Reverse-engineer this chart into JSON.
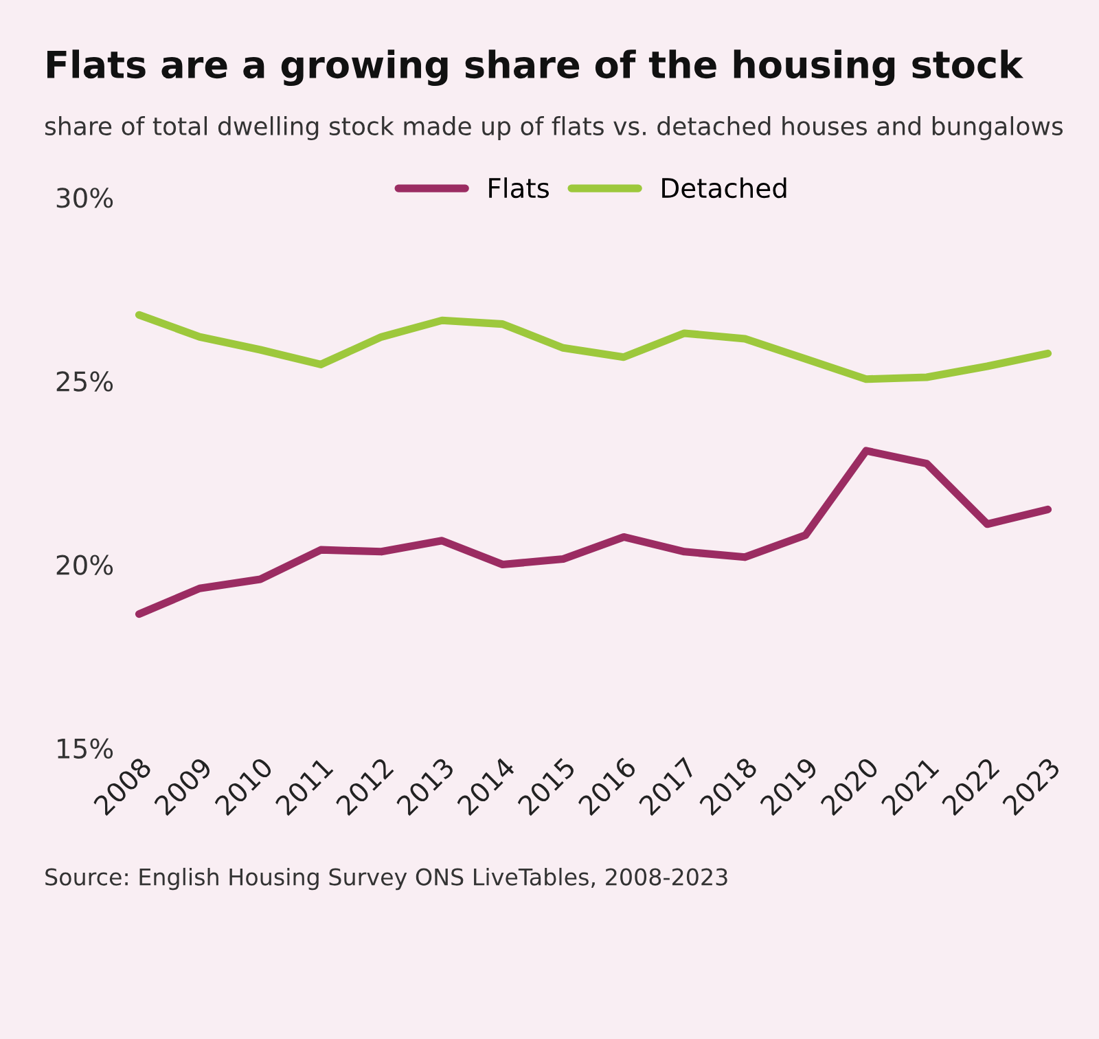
{
  "chart_data": {
    "type": "line",
    "title": "Flats are a growing share of the housing stock",
    "subtitle": "share of total dwelling stock made up of flats vs. detached houses and bungalows",
    "categories": [
      "2008",
      "2009",
      "2010",
      "2011",
      "2012",
      "2013",
      "2014",
      "2015",
      "2016",
      "2017",
      "2018",
      "2019",
      "2020",
      "2021",
      "2022",
      "2023"
    ],
    "series": [
      {
        "name": "Flats",
        "color": "#9b2c62",
        "values": [
          18.65,
          19.35,
          19.6,
          20.4,
          20.35,
          20.65,
          20.0,
          20.15,
          20.75,
          20.35,
          20.2,
          20.8,
          23.1,
          22.75,
          21.1,
          21.5
        ]
      },
      {
        "name": "Detached",
        "color": "#9dc83c",
        "values": [
          26.8,
          26.2,
          25.85,
          25.45,
          26.2,
          26.65,
          26.55,
          25.9,
          25.65,
          26.3,
          26.15,
          25.6,
          25.05,
          25.1,
          25.4,
          25.75
        ]
      }
    ],
    "ylim": [
      15,
      30
    ],
    "yticks": [
      {
        "value": 15,
        "label": "15%"
      },
      {
        "value": 20,
        "label": "20%"
      },
      {
        "value": 25,
        "label": "25%"
      },
      {
        "value": 30,
        "label": "30%"
      }
    ],
    "grid": false,
    "legend": "top",
    "marker": "none",
    "line_style": "solid",
    "annotations": [
      "Source: English Housing Survey ONS LiveTables, 2008-2023"
    ]
  }
}
